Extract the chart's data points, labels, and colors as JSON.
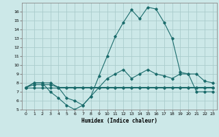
{
  "hours": [
    0,
    1,
    2,
    3,
    4,
    5,
    6,
    7,
    8,
    9,
    10,
    11,
    12,
    13,
    14,
    15,
    16,
    17,
    18,
    19,
    20,
    21,
    22,
    23
  ],
  "line_max": [
    7.5,
    8.0,
    8.0,
    8.0,
    7.5,
    6.3,
    6.0,
    5.5,
    6.5,
    8.8,
    11.0,
    13.2,
    14.8,
    16.2,
    15.2,
    16.5,
    16.3,
    14.8,
    13.0,
    9.2,
    9.0,
    9.0,
    8.2,
    8.0
  ],
  "line_mean": [
    7.5,
    7.8,
    7.8,
    7.8,
    7.5,
    7.5,
    7.5,
    7.5,
    7.5,
    7.5,
    7.5,
    7.5,
    7.5,
    7.5,
    7.5,
    7.5,
    7.5,
    7.5,
    7.5,
    7.5,
    7.5,
    7.5,
    7.5,
    7.5
  ],
  "line_min": [
    7.5,
    7.5,
    7.5,
    7.5,
    7.5,
    7.5,
    7.5,
    7.5,
    7.5,
    7.5,
    7.5,
    7.5,
    7.5,
    7.5,
    7.5,
    7.5,
    7.5,
    7.5,
    7.5,
    7.5,
    7.5,
    7.5,
    7.5,
    7.5
  ],
  "line_cur": [
    7.5,
    8.0,
    8.0,
    7.0,
    6.3,
    5.5,
    5.0,
    5.5,
    6.5,
    7.5,
    8.5,
    9.0,
    9.5,
    8.5,
    9.0,
    9.5,
    9.0,
    8.8,
    8.5,
    9.0,
    9.0,
    7.0,
    7.0,
    7.0
  ],
  "bg_color": "#cce8e8",
  "grid_color": "#aacccc",
  "line_color": "#1a6b6b",
  "ylim": [
    5,
    17
  ],
  "xlim": [
    -0.5,
    23.5
  ],
  "yticks": [
    5,
    6,
    7,
    8,
    9,
    10,
    11,
    12,
    13,
    14,
    15,
    16
  ],
  "xticks": [
    0,
    1,
    2,
    3,
    4,
    5,
    6,
    7,
    8,
    9,
    10,
    11,
    12,
    13,
    14,
    15,
    16,
    17,
    18,
    19,
    20,
    21,
    22,
    23
  ],
  "xlabel": "Humidex (Indice chaleur)"
}
